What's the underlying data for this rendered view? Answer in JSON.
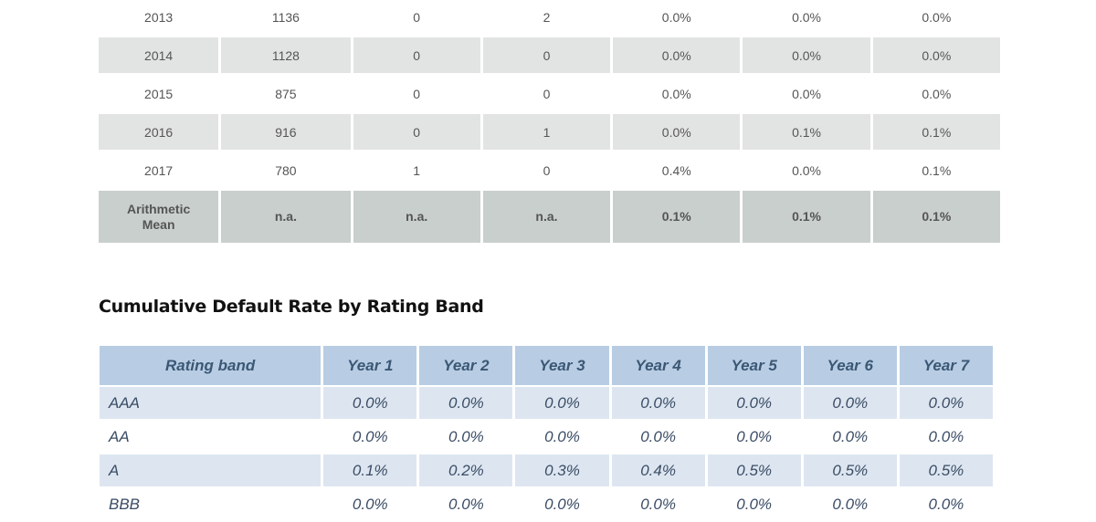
{
  "annual_table": {
    "rows": [
      {
        "year": "2013",
        "count": "1136",
        "c2": "0",
        "c3": "2",
        "p1": "0.0%",
        "p2": "0.0%",
        "p3": "0.0%"
      },
      {
        "year": "2014",
        "count": "1128",
        "c2": "0",
        "c3": "0",
        "p1": "0.0%",
        "p2": "0.0%",
        "p3": "0.0%"
      },
      {
        "year": "2015",
        "count": "875",
        "c2": "0",
        "c3": "0",
        "p1": "0.0%",
        "p2": "0.0%",
        "p3": "0.0%"
      },
      {
        "year": "2016",
        "count": "916",
        "c2": "0",
        "c3": "1",
        "p1": "0.0%",
        "p2": "0.1%",
        "p3": "0.1%"
      },
      {
        "year": "2017",
        "count": "780",
        "c2": "1",
        "c3": "0",
        "p1": "0.4%",
        "p2": "0.0%",
        "p3": "0.1%"
      }
    ],
    "mean_row": {
      "label_line1": "Arithmetic",
      "label_line2": "Mean",
      "count": "n.a.",
      "c2": "n.a.",
      "c3": "n.a.",
      "p1": "0.1%",
      "p2": "0.1%",
      "p3": "0.1%"
    }
  },
  "section_heading": "Cumulative Default Rate by Rating Band",
  "cumulative_table": {
    "headers": [
      "Rating band",
      "Year 1",
      "Year 2",
      "Year 3",
      "Year 4",
      "Year 5",
      "Year 6",
      "Year 7"
    ],
    "rows": [
      {
        "band": "AAA",
        "values": [
          "0.0%",
          "0.0%",
          "0.0%",
          "0.0%",
          "0.0%",
          "0.0%",
          "0.0%"
        ]
      },
      {
        "band": "AA",
        "values": [
          "0.0%",
          "0.0%",
          "0.0%",
          "0.0%",
          "0.0%",
          "0.0%",
          "0.0%"
        ]
      },
      {
        "band": "A",
        "values": [
          "0.1%",
          "0.2%",
          "0.3%",
          "0.4%",
          "0.5%",
          "0.5%",
          "0.5%"
        ]
      },
      {
        "band": "BBB",
        "values": [
          "0.0%",
          "0.0%",
          "0.0%",
          "0.0%",
          "0.0%",
          "0.0%",
          "0.0%"
        ]
      }
    ]
  },
  "colors": {
    "annual_shade": "#e2e4e3",
    "mean_shade": "#c9cfcd",
    "cumulative_header": "#b8cde3",
    "cumulative_shade": "#dde6f0"
  }
}
